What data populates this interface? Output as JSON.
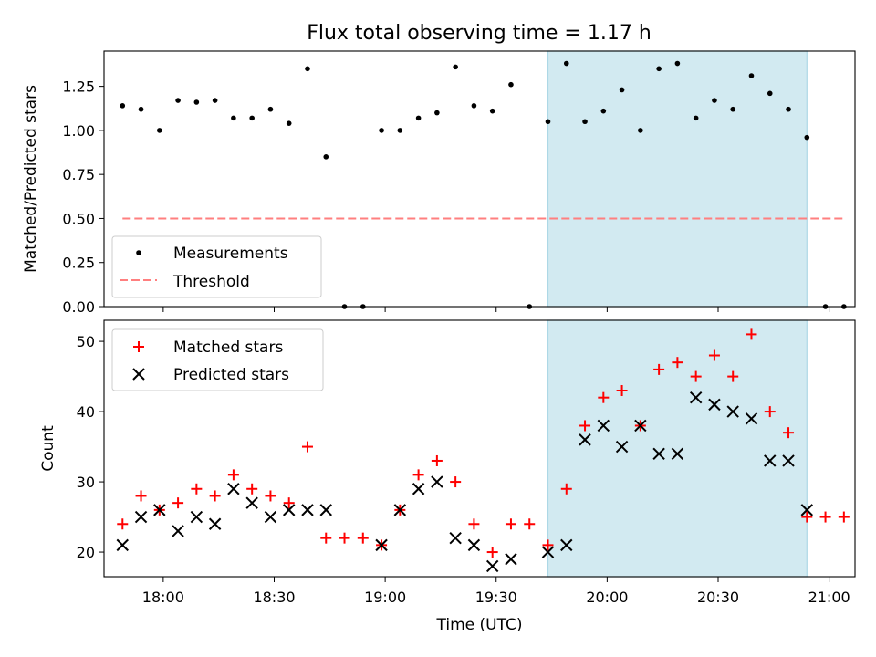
{
  "figure": {
    "title": "Flux total observing time = 1.17 h"
  },
  "colors": {
    "highlight": "#add8e6",
    "threshold": "#ff7f7f",
    "matched": "#ff0000",
    "predicted": "#000000",
    "measurement": "#000000"
  },
  "chart_data": [
    {
      "type": "scatter",
      "panel": "top",
      "xlabel": "",
      "ylabel": "Matched/Predicted stars",
      "xlim": [
        "17:44",
        "21:07"
      ],
      "ylim": [
        0,
        1.45
      ],
      "yticks": [
        "0.00",
        "0.25",
        "0.50",
        "0.75",
        "1.00",
        "1.25"
      ],
      "highlight_span": [
        "19:44",
        "20:54"
      ],
      "legend_position": "lower-left",
      "series": [
        {
          "name": "Measurements",
          "marker": "dot",
          "x": [
            "17:49",
            "17:54",
            "17:59",
            "18:04",
            "18:09",
            "18:14",
            "18:19",
            "18:24",
            "18:29",
            "18:34",
            "18:39",
            "18:44",
            "18:49",
            "18:54",
            "18:59",
            "19:04",
            "19:09",
            "19:14",
            "19:19",
            "19:24",
            "19:29",
            "19:34",
            "19:39",
            "19:44",
            "19:49",
            "19:54",
            "19:59",
            "20:04",
            "20:09",
            "20:14",
            "20:19",
            "20:24",
            "20:29",
            "20:34",
            "20:39",
            "20:44",
            "20:49",
            "20:54",
            "20:59",
            "21:04"
          ],
          "values": [
            1.14,
            1.12,
            1.0,
            1.17,
            1.16,
            1.17,
            1.07,
            1.07,
            1.12,
            1.04,
            1.35,
            0.85,
            0,
            0,
            1.0,
            1.0,
            1.07,
            1.1,
            1.36,
            1.14,
            1.11,
            1.26,
            0,
            1.05,
            1.38,
            1.05,
            1.11,
            1.23,
            1.0,
            1.35,
            1.38,
            1.07,
            1.17,
            1.12,
            1.31,
            1.21,
            1.12,
            0.96,
            0,
            0
          ]
        },
        {
          "name": "Threshold",
          "style": "dashed-line",
          "x": [
            "17:49",
            "21:04"
          ],
          "values": [
            0.5,
            0.5
          ]
        }
      ]
    },
    {
      "type": "scatter",
      "panel": "bottom",
      "xlabel": "Time (UTC)",
      "ylabel": "Count",
      "xlim": [
        "17:44",
        "21:07"
      ],
      "ylim": [
        16.5,
        53
      ],
      "xticks": [
        "18:00",
        "18:30",
        "19:00",
        "19:30",
        "20:00",
        "20:30",
        "21:00"
      ],
      "yticks": [
        "20",
        "30",
        "40",
        "50"
      ],
      "highlight_span": [
        "19:44",
        "20:54"
      ],
      "legend_position": "upper-left",
      "series": [
        {
          "name": "Matched stars",
          "marker": "plus",
          "x": [
            "17:49",
            "17:54",
            "17:59",
            "18:04",
            "18:09",
            "18:14",
            "18:19",
            "18:24",
            "18:29",
            "18:34",
            "18:39",
            "18:44",
            "18:49",
            "18:54",
            "18:59",
            "19:04",
            "19:09",
            "19:14",
            "19:19",
            "19:24",
            "19:29",
            "19:34",
            "19:39",
            "19:44",
            "19:49",
            "19:54",
            "19:59",
            "20:04",
            "20:09",
            "20:14",
            "20:19",
            "20:24",
            "20:29",
            "20:34",
            "20:39",
            "20:44",
            "20:49",
            "20:54",
            "20:59",
            "21:04"
          ],
          "values": [
            24,
            28,
            26,
            27,
            29,
            28,
            31,
            29,
            28,
            27,
            35,
            22,
            22,
            22,
            21,
            26,
            31,
            33,
            30,
            24,
            20,
            24,
            24,
            21,
            29,
            38,
            42,
            43,
            38,
            46,
            47,
            45,
            48,
            45,
            51,
            40,
            37,
            25,
            25,
            25
          ]
        },
        {
          "name": "Predicted stars",
          "marker": "x",
          "x": [
            "17:49",
            "17:54",
            "17:59",
            "18:04",
            "18:09",
            "18:14",
            "18:19",
            "18:24",
            "18:29",
            "18:34",
            "18:39",
            "18:44",
            "18:59",
            "19:04",
            "19:09",
            "19:14",
            "19:19",
            "19:24",
            "19:29",
            "19:34",
            "19:44",
            "19:49",
            "19:54",
            "19:59",
            "20:04",
            "20:09",
            "20:14",
            "20:19",
            "20:24",
            "20:29",
            "20:34",
            "20:39",
            "20:44",
            "20:49",
            "20:54"
          ],
          "values": [
            21,
            25,
            26,
            23,
            25,
            24,
            29,
            27,
            25,
            26,
            26,
            26,
            21,
            26,
            29,
            30,
            22,
            21,
            18,
            19,
            20,
            21,
            36,
            38,
            35,
            38,
            34,
            34,
            42,
            41,
            40,
            39,
            33,
            33,
            26
          ]
        }
      ]
    }
  ]
}
